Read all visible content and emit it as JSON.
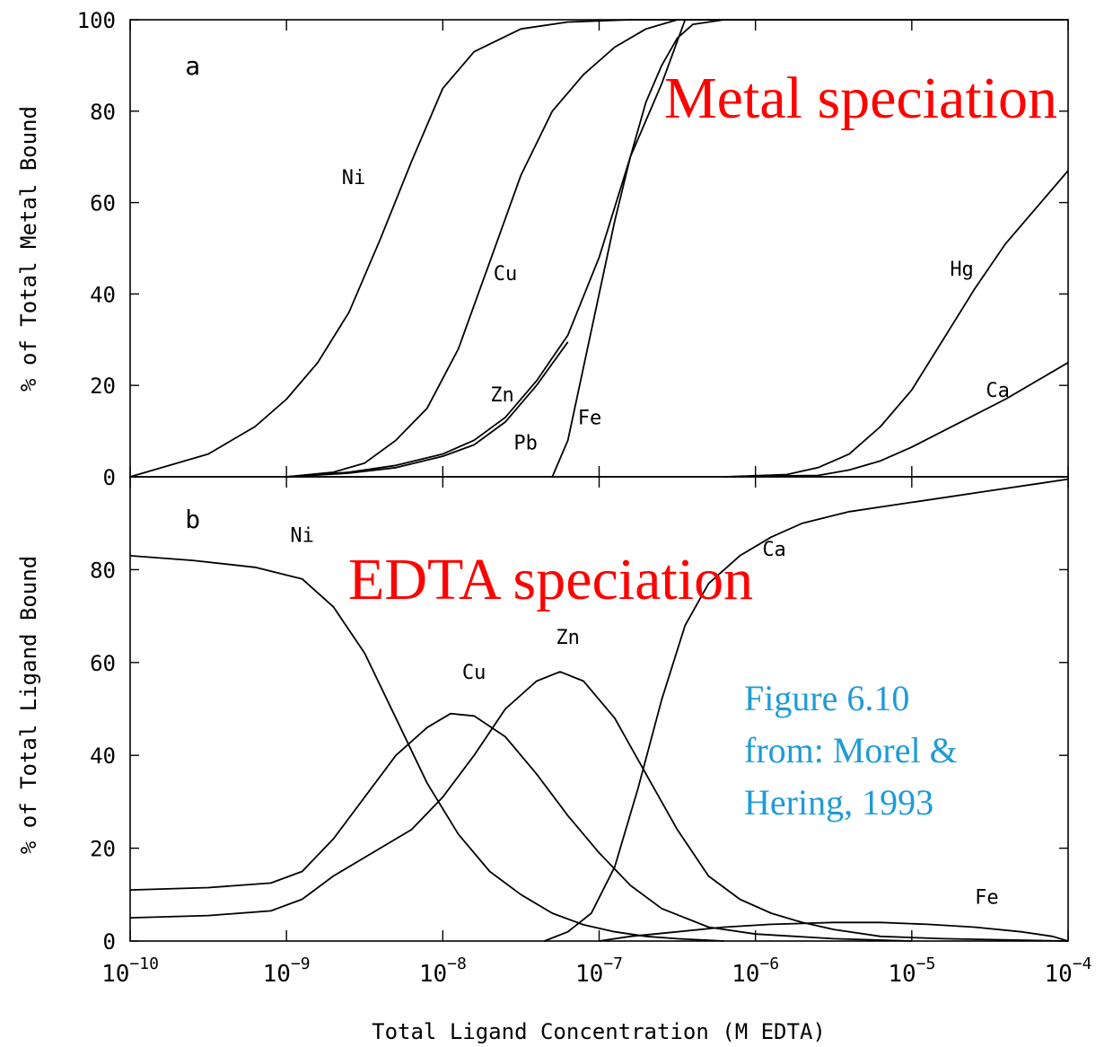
{
  "colors": {
    "axes": "#000000",
    "overlay_red": "#ff0000",
    "overlay_blue": "#1e9bd7"
  },
  "overlays": {
    "metal": "Metal speciation",
    "edta": "EDTA speciation",
    "citation": [
      "Figure 6.10",
      "from: Morel &",
      "Hering, 1993"
    ]
  },
  "xlabel": "Total Ligand Concentration (M EDTA)",
  "x_ticks": [
    {
      "exp": -10,
      "base": "10",
      "sup": "−10"
    },
    {
      "exp": -9,
      "base": "10",
      "sup": "−9"
    },
    {
      "exp": -8,
      "base": "10",
      "sup": "−8"
    },
    {
      "exp": -7,
      "base": "10",
      "sup": "−7"
    },
    {
      "exp": -6,
      "base": "10",
      "sup": "−6"
    },
    {
      "exp": -5,
      "base": "10",
      "sup": "−5"
    },
    {
      "exp": -4,
      "base": "10",
      "sup": "−4"
    }
  ],
  "chart_data": [
    {
      "type": "line",
      "panel": "a",
      "ylabel": "% of Total Metal Bound",
      "x_scale": "log",
      "xlim": [
        1e-10,
        0.0001
      ],
      "ylim": [
        0,
        100
      ],
      "yticks": [
        0,
        20,
        40,
        60,
        80,
        100
      ],
      "series": [
        {
          "name": "Ni",
          "points": [
            [
              -10,
              0
            ],
            [
              -9.5,
              5
            ],
            [
              -9.2,
              11
            ],
            [
              -9,
              17
            ],
            [
              -8.8,
              25
            ],
            [
              -8.6,
              36
            ],
            [
              -8.4,
              52
            ],
            [
              -8.2,
              69
            ],
            [
              -8,
              85
            ],
            [
              -7.8,
              93
            ],
            [
              -7.5,
              98
            ],
            [
              -7.2,
              99.5
            ],
            [
              -6.8,
              100
            ],
            [
              -4,
              100
            ]
          ]
        },
        {
          "name": "Cu",
          "points": [
            [
              -9,
              0
            ],
            [
              -8.7,
              1
            ],
            [
              -8.5,
              3
            ],
            [
              -8.3,
              8
            ],
            [
              -8.1,
              15
            ],
            [
              -7.9,
              28
            ],
            [
              -7.7,
              47
            ],
            [
              -7.5,
              66
            ],
            [
              -7.3,
              80
            ],
            [
              -7.1,
              88
            ],
            [
              -6.9,
              94
            ],
            [
              -6.7,
              98
            ],
            [
              -6.5,
              100
            ],
            [
              -4,
              100
            ]
          ]
        },
        {
          "name": "Zn",
          "points": [
            [
              -9,
              0
            ],
            [
              -8.6,
              1
            ],
            [
              -8.3,
              2.5
            ],
            [
              -8,
              5
            ],
            [
              -7.8,
              8
            ],
            [
              -7.6,
              13
            ],
            [
              -7.4,
              21
            ],
            [
              -7.2,
              31
            ],
            [
              -7,
              48
            ],
            [
              -6.8,
              70
            ],
            [
              -6.6,
              86
            ],
            [
              -6.45,
              100
            ],
            [
              -4,
              100
            ]
          ]
        },
        {
          "name": "Pb",
          "points": [
            [
              -9,
              0
            ],
            [
              -8.6,
              0.8
            ],
            [
              -8.3,
              2
            ],
            [
              -8,
              4.5
            ],
            [
              -7.8,
              7
            ],
            [
              -7.6,
              12
            ],
            [
              -7.4,
              20
            ],
            [
              -7.2,
              29.5
            ]
          ]
        },
        {
          "name": "Fe",
          "points": [
            [
              -7.3,
              0
            ],
            [
              -7.2,
              8
            ],
            [
              -7.1,
              24
            ],
            [
              -7,
              40
            ],
            [
              -6.9,
              56
            ],
            [
              -6.8,
              70
            ],
            [
              -6.7,
              82
            ],
            [
              -6.6,
              90
            ],
            [
              -6.5,
              96
            ],
            [
              -6.4,
              99
            ],
            [
              -6.2,
              100
            ],
            [
              -4,
              100
            ]
          ]
        },
        {
          "name": "Hg",
          "points": [
            [
              -6.2,
              0
            ],
            [
              -5.8,
              0.5
            ],
            [
              -5.6,
              2
            ],
            [
              -5.4,
              5
            ],
            [
              -5.2,
              11
            ],
            [
              -5,
              19
            ],
            [
              -4.8,
              30
            ],
            [
              -4.6,
              41
            ],
            [
              -4.4,
              51
            ],
            [
              -4.2,
              59
            ],
            [
              -4,
              67
            ]
          ]
        },
        {
          "name": "Ca",
          "points": [
            [
              -6.2,
              0
            ],
            [
              -5.6,
              0.3
            ],
            [
              -5.4,
              1.5
            ],
            [
              -5.2,
              3.5
            ],
            [
              -5,
              6.5
            ],
            [
              -4.8,
              10
            ],
            [
              -4.6,
              13.5
            ],
            [
              -4.4,
              17
            ],
            [
              -4.2,
              21
            ],
            [
              -4,
              25
            ]
          ]
        }
      ],
      "labels": [
        {
          "text": "a",
          "x": -9.6,
          "y": 88
        },
        {
          "text": "Ni",
          "x": -8.57,
          "y": 64
        },
        {
          "text": "Cu",
          "x": -7.6,
          "y": 43
        },
        {
          "text": "Zn",
          "x": -7.62,
          "y": 16.5
        },
        {
          "text": "Pb",
          "x": -7.47,
          "y": 6
        },
        {
          "text": "Fe",
          "x": -7.06,
          "y": 11.5
        },
        {
          "text": "Hg",
          "x": -4.68,
          "y": 44
        },
        {
          "text": "Ca",
          "x": -4.45,
          "y": 17.5
        }
      ]
    },
    {
      "type": "line",
      "panel": "b",
      "ylabel": "% of Total Ligand Bound",
      "x_scale": "log",
      "xlim": [
        1e-10,
        0.0001
      ],
      "ylim": [
        0,
        100
      ],
      "yticks": [
        0,
        20,
        40,
        60,
        80
      ],
      "series": [
        {
          "name": "Ni",
          "points": [
            [
              -10,
              83
            ],
            [
              -9.6,
              82
            ],
            [
              -9.2,
              80.5
            ],
            [
              -8.9,
              78
            ],
            [
              -8.7,
              72
            ],
            [
              -8.5,
              62
            ],
            [
              -8.3,
              48
            ],
            [
              -8.1,
              34
            ],
            [
              -7.9,
              23
            ],
            [
              -7.7,
              15
            ],
            [
              -7.5,
              10
            ],
            [
              -7.3,
              6
            ],
            [
              -7.1,
              3.5
            ],
            [
              -6.9,
              2
            ],
            [
              -6.7,
              1
            ],
            [
              -6.5,
              0.5
            ],
            [
              -6.2,
              0
            ]
          ]
        },
        {
          "name": "Cu",
          "points": [
            [
              -10,
              11
            ],
            [
              -9.5,
              11.5
            ],
            [
              -9.1,
              12.5
            ],
            [
              -8.9,
              15
            ],
            [
              -8.7,
              22
            ],
            [
              -8.5,
              31
            ],
            [
              -8.3,
              40
            ],
            [
              -8.1,
              46
            ],
            [
              -7.95,
              49
            ],
            [
              -7.8,
              48.5
            ],
            [
              -7.6,
              44
            ],
            [
              -7.4,
              36
            ],
            [
              -7.2,
              27
            ],
            [
              -7,
              19
            ],
            [
              -6.8,
              12
            ],
            [
              -6.6,
              7
            ],
            [
              -6.3,
              3
            ],
            [
              -6,
              1.5
            ],
            [
              -5.5,
              0.5
            ],
            [
              -5,
              0
            ]
          ]
        },
        {
          "name": "Zn",
          "points": [
            [
              -10,
              5
            ],
            [
              -9.5,
              5.5
            ],
            [
              -9.1,
              6.5
            ],
            [
              -8.9,
              9
            ],
            [
              -8.7,
              14
            ],
            [
              -8.5,
              18
            ],
            [
              -8.2,
              24
            ],
            [
              -8,
              31
            ],
            [
              -7.8,
              40
            ],
            [
              -7.6,
              50
            ],
            [
              -7.4,
              56
            ],
            [
              -7.25,
              58
            ],
            [
              -7.1,
              56
            ],
            [
              -6.9,
              48
            ],
            [
              -6.7,
              36
            ],
            [
              -6.5,
              24
            ],
            [
              -6.3,
              14
            ],
            [
              -6.1,
              9
            ],
            [
              -5.9,
              6
            ],
            [
              -5.7,
              4
            ],
            [
              -5.5,
              2.5
            ],
            [
              -5.2,
              1
            ],
            [
              -4.8,
              0.5
            ],
            [
              -4,
              0
            ]
          ]
        },
        {
          "name": "Ca",
          "points": [
            [
              -7.35,
              0
            ],
            [
              -7.2,
              2
            ],
            [
              -7.05,
              6
            ],
            [
              -6.9,
              16
            ],
            [
              -6.75,
              33
            ],
            [
              -6.6,
              52
            ],
            [
              -6.45,
              68
            ],
            [
              -6.3,
              77
            ],
            [
              -6.1,
              83
            ],
            [
              -5.9,
              87
            ],
            [
              -5.7,
              90
            ],
            [
              -5.4,
              92.5
            ],
            [
              -5.1,
              94
            ],
            [
              -4.8,
              95.5
            ],
            [
              -4.5,
              97
            ],
            [
              -4.2,
              98.5
            ],
            [
              -4,
              99.5
            ]
          ]
        },
        {
          "name": "Fe",
          "points": [
            [
              -7,
              0
            ],
            [
              -6.8,
              1
            ],
            [
              -6.5,
              2
            ],
            [
              -6.2,
              3
            ],
            [
              -5.9,
              3.6
            ],
            [
              -5.5,
              4
            ],
            [
              -5.2,
              4
            ],
            [
              -4.9,
              3.6
            ],
            [
              -4.6,
              3
            ],
            [
              -4.3,
              2
            ],
            [
              -4.1,
              1
            ],
            [
              -4,
              0
            ]
          ]
        }
      ],
      "labels": [
        {
          "text": "b",
          "x": -9.6,
          "y": 89
        },
        {
          "text": "Ni",
          "x": -8.9,
          "y": 86
        },
        {
          "text": "Ca",
          "x": -5.88,
          "y": 83
        },
        {
          "text": "Zn",
          "x": -7.2,
          "y": 64
        },
        {
          "text": "Cu",
          "x": -7.8,
          "y": 56.5
        },
        {
          "text": "Fe",
          "x": -4.52,
          "y": 8
        }
      ]
    }
  ]
}
